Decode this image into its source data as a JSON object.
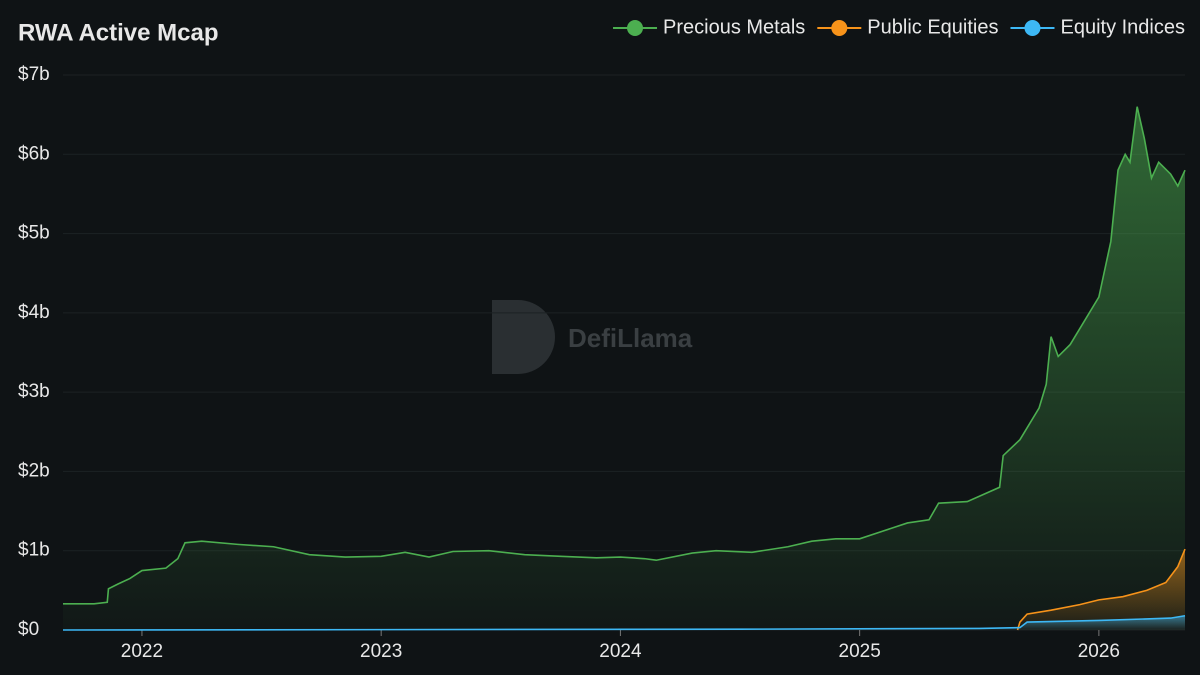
{
  "chart_data": {
    "type": "area",
    "title": "RWA Active Mcap",
    "watermark": "DefiLlama",
    "xlim": [
      2021.67,
      2026.36
    ],
    "xticks": [
      2022,
      2023,
      2024,
      2025,
      2026
    ],
    "ylim": [
      0,
      7
    ],
    "yticks": [
      {
        "value": 0,
        "label": "$0"
      },
      {
        "value": 1,
        "label": "$1b"
      },
      {
        "value": 2,
        "label": "$2b"
      },
      {
        "value": 3,
        "label": "$3b"
      },
      {
        "value": 4,
        "label": "$4b"
      },
      {
        "value": 5,
        "label": "$5b"
      },
      {
        "value": 6,
        "label": "$6b"
      },
      {
        "value": 7,
        "label": "$7b"
      }
    ],
    "grid": true,
    "legend": "top-right",
    "series": [
      {
        "name": "Precious Metals",
        "color": "#4caf50",
        "x": [
          2021.67,
          2021.8,
          2021.855,
          2021.86,
          2021.9,
          2021.95,
          2022.0,
          2022.1,
          2022.15,
          2022.18,
          2022.25,
          2022.4,
          2022.55,
          2022.7,
          2022.85,
          2023.0,
          2023.1,
          2023.2,
          2023.3,
          2023.45,
          2023.6,
          2023.75,
          2023.9,
          2024.0,
          2024.1,
          2024.15,
          2024.3,
          2024.4,
          2024.55,
          2024.7,
          2024.8,
          2024.9,
          2025.0,
          2025.1,
          2025.2,
          2025.29,
          2025.33,
          2025.45,
          2025.585,
          2025.6,
          2025.67,
          2025.75,
          2025.78,
          2025.8,
          2025.83,
          2025.88,
          2025.94,
          2026.0,
          2026.05,
          2026.08,
          2026.11,
          2026.13,
          2026.16,
          2026.19,
          2026.22,
          2026.25,
          2026.3,
          2026.33,
          2026.36
        ],
        "values": [
          0.33,
          0.33,
          0.35,
          0.52,
          0.58,
          0.65,
          0.75,
          0.78,
          0.9,
          1.1,
          1.12,
          1.08,
          1.05,
          0.95,
          0.92,
          0.93,
          0.98,
          0.92,
          0.99,
          1.0,
          0.95,
          0.93,
          0.91,
          0.92,
          0.9,
          0.88,
          0.97,
          1.0,
          0.98,
          1.05,
          1.12,
          1.15,
          1.15,
          1.25,
          1.35,
          1.39,
          1.6,
          1.62,
          1.8,
          2.2,
          2.4,
          2.8,
          3.1,
          3.7,
          3.45,
          3.6,
          3.9,
          4.2,
          4.9,
          5.8,
          6.0,
          5.9,
          6.6,
          6.2,
          5.7,
          5.9,
          5.75,
          5.6,
          5.8
        ]
      },
      {
        "name": "Public Equities",
        "color": "#f7931a",
        "x": [
          2025.66,
          2025.67,
          2025.7,
          2025.8,
          2025.92,
          2026.0,
          2026.1,
          2026.2,
          2026.28,
          2026.33,
          2026.36
        ],
        "values": [
          0,
          0.1,
          0.2,
          0.25,
          0.32,
          0.38,
          0.42,
          0.5,
          0.6,
          0.8,
          1.02
        ]
      },
      {
        "name": "Equity Indices",
        "color": "#3db8f5",
        "x": [
          2021.67,
          2024.5,
          2025.5,
          2025.67,
          2025.7,
          2026.0,
          2026.3,
          2026.36
        ],
        "values": [
          0,
          0.01,
          0.02,
          0.03,
          0.1,
          0.12,
          0.15,
          0.18
        ]
      }
    ]
  }
}
